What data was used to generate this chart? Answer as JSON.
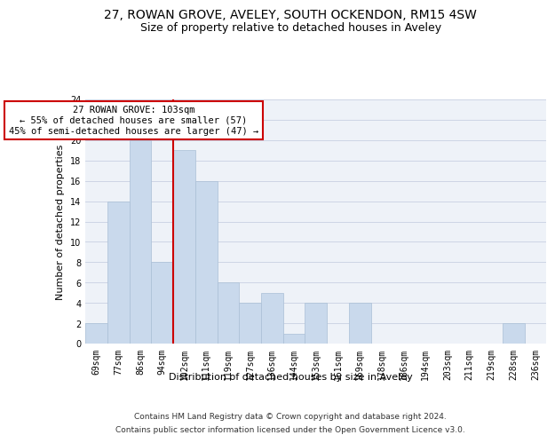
{
  "title": "27, ROWAN GROVE, AVELEY, SOUTH OCKENDON, RM15 4SW",
  "subtitle": "Size of property relative to detached houses in Aveley",
  "xlabel": "Distribution of detached houses by size in Aveley",
  "ylabel": "Number of detached properties",
  "categories": [
    "69sqm",
    "77sqm",
    "86sqm",
    "94sqm",
    "102sqm",
    "111sqm",
    "119sqm",
    "127sqm",
    "136sqm",
    "144sqm",
    "153sqm",
    "161sqm",
    "169sqm",
    "178sqm",
    "186sqm",
    "194sqm",
    "203sqm",
    "211sqm",
    "219sqm",
    "228sqm",
    "236sqm"
  ],
  "values": [
    2,
    14,
    20,
    8,
    19,
    16,
    6,
    4,
    5,
    1,
    4,
    0,
    4,
    0,
    0,
    0,
    0,
    0,
    0,
    2,
    0
  ],
  "bar_color": "#c9d9ec",
  "bar_edge_color": "#aabfd6",
  "red_line_color": "#cc0000",
  "red_line_index": 4,
  "annotation_line1": "27 ROWAN GROVE: 103sqm",
  "annotation_line2": "← 55% of detached houses are smaller (57)",
  "annotation_line3": "45% of semi-detached houses are larger (47) →",
  "annotation_box_edge": "#cc0000",
  "ylim": [
    0,
    24
  ],
  "yticks": [
    0,
    2,
    4,
    6,
    8,
    10,
    12,
    14,
    16,
    18,
    20,
    22,
    24
  ],
  "footer_line1": "Contains HM Land Registry data © Crown copyright and database right 2024.",
  "footer_line2": "Contains public sector information licensed under the Open Government Licence v3.0.",
  "title_fontsize": 10,
  "subtitle_fontsize": 9,
  "ylabel_fontsize": 8,
  "xlabel_fontsize": 8,
  "tick_fontsize": 7,
  "annotation_fontsize": 7.5,
  "footer_fontsize": 6.5,
  "grid_color": "#cdd5e5",
  "ax_background": "#eef2f8"
}
